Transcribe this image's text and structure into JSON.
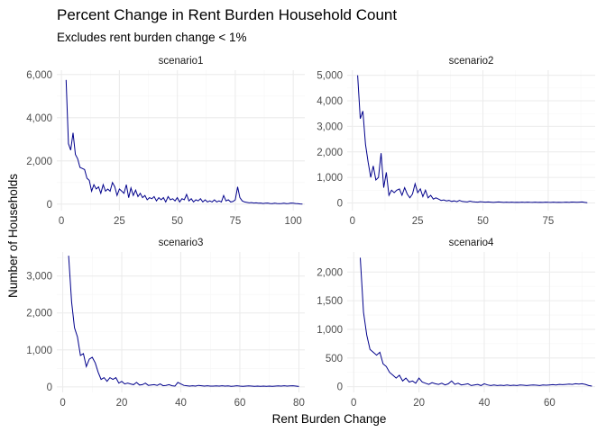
{
  "chart_data": {
    "type": "line",
    "title": "Percent Change in Rent Burden Household Count",
    "subtitle": "Excludes rent burden change < 1%",
    "xlabel": "Rent Burden Change",
    "ylabel": "Number of Households",
    "grid": true,
    "line_color": "#00008b",
    "facets": [
      {
        "strip": "scenario1",
        "xlim": [
          -2,
          105
        ],
        "ylim": [
          -300,
          6200
        ],
        "xticks": [
          0,
          25,
          50,
          75,
          100
        ],
        "xtick_labels": [
          "0",
          "25",
          "50",
          "75",
          "100"
        ],
        "yticks": [
          0,
          2000,
          4000,
          6000
        ],
        "ytick_labels": [
          "0",
          "2,000",
          "4,000",
          "6,000"
        ],
        "x": [
          2,
          3,
          4,
          5,
          6,
          7,
          8,
          9,
          10,
          11,
          12,
          13,
          14,
          15,
          16,
          17,
          18,
          19,
          20,
          21,
          22,
          23,
          24,
          25,
          26,
          27,
          28,
          29,
          30,
          31,
          32,
          33,
          34,
          35,
          36,
          37,
          38,
          39,
          40,
          41,
          42,
          43,
          44,
          45,
          46,
          47,
          48,
          49,
          50,
          51,
          52,
          53,
          54,
          55,
          56,
          57,
          58,
          59,
          60,
          61,
          62,
          63,
          64,
          65,
          66,
          67,
          68,
          69,
          70,
          71,
          72,
          73,
          74,
          75,
          76,
          77,
          78,
          79,
          80,
          81,
          82,
          83,
          84,
          85,
          86,
          87,
          88,
          89,
          90,
          91,
          92,
          93,
          94,
          95,
          96,
          97,
          98,
          99,
          100,
          101,
          102,
          103,
          104
        ],
        "y": [
          5750,
          2800,
          2500,
          3300,
          2300,
          2100,
          1700,
          1650,
          1600,
          1200,
          1100,
          600,
          900,
          700,
          800,
          500,
          900,
          600,
          700,
          600,
          1000,
          800,
          400,
          700,
          600,
          500,
          900,
          300,
          750,
          400,
          650,
          350,
          500,
          300,
          400,
          200,
          300,
          250,
          350,
          150,
          300,
          200,
          300,
          100,
          350,
          200,
          250,
          150,
          300,
          100,
          250,
          200,
          450,
          150,
          250,
          100,
          200,
          150,
          250,
          100,
          200,
          100,
          150,
          100,
          200,
          100,
          150,
          100,
          400,
          150,
          200,
          100,
          120,
          200,
          800,
          300,
          150,
          100,
          80,
          60,
          70,
          50,
          60,
          40,
          50,
          30,
          40,
          50,
          30,
          20,
          40,
          30,
          20,
          30,
          40,
          20,
          30,
          50,
          40,
          30,
          20,
          10,
          5
        ]
      },
      {
        "strip": "scenario2",
        "xlim": [
          -2,
          93
        ],
        "ylim": [
          -300,
          5200
        ],
        "xticks": [
          0,
          25,
          50,
          75
        ],
        "xtick_labels": [
          "0",
          "25",
          "50",
          "75"
        ],
        "yticks": [
          0,
          1000,
          2000,
          3000,
          4000,
          5000
        ],
        "ytick_labels": [
          "0",
          "1,000",
          "2,000",
          "3,000",
          "4,000",
          "5,000"
        ],
        "x": [
          2,
          3,
          4,
          5,
          6,
          7,
          8,
          9,
          10,
          11,
          12,
          13,
          14,
          15,
          16,
          17,
          18,
          19,
          20,
          21,
          22,
          23,
          24,
          25,
          26,
          27,
          28,
          29,
          30,
          31,
          32,
          33,
          34,
          35,
          36,
          37,
          38,
          39,
          40,
          41,
          42,
          43,
          44,
          45,
          46,
          47,
          48,
          49,
          50,
          51,
          52,
          53,
          54,
          55,
          56,
          57,
          58,
          59,
          60,
          61,
          62,
          63,
          64,
          65,
          66,
          67,
          68,
          69,
          70,
          71,
          72,
          73,
          74,
          75,
          76,
          77,
          78,
          79,
          80,
          81,
          82,
          83,
          84,
          85,
          86,
          87,
          88,
          89,
          90
        ],
        "y": [
          5000,
          3300,
          3600,
          2300,
          1600,
          1000,
          1450,
          900,
          1000,
          1950,
          600,
          1200,
          300,
          500,
          400,
          500,
          550,
          300,
          600,
          350,
          200,
          350,
          750,
          400,
          550,
          250,
          500,
          200,
          300,
          150,
          200,
          150,
          100,
          120,
          80,
          100,
          60,
          80,
          50,
          100,
          60,
          50,
          40,
          70,
          50,
          40,
          30,
          50,
          40,
          30,
          40,
          30,
          20,
          30,
          40,
          30,
          20,
          30,
          20,
          30,
          20,
          25,
          20,
          30,
          20,
          30,
          25,
          20,
          30,
          20,
          25,
          20,
          30,
          25,
          20,
          30,
          20,
          25,
          20,
          25,
          30,
          20,
          35,
          30,
          25,
          30,
          40,
          20,
          10
        ]
      },
      {
        "strip": "scenario3",
        "xlim": [
          -2,
          82
        ],
        "ylim": [
          -150,
          3650
        ],
        "xticks": [
          0,
          20,
          40,
          60,
          80
        ],
        "xtick_labels": [
          "0",
          "20",
          "40",
          "60",
          "80"
        ],
        "yticks": [
          0,
          1000,
          2000,
          3000
        ],
        "ytick_labels": [
          "0",
          "1,000",
          "2,000",
          "3,000"
        ],
        "x": [
          2,
          3,
          4,
          5,
          6,
          7,
          8,
          9,
          10,
          11,
          12,
          13,
          14,
          15,
          16,
          17,
          18,
          19,
          20,
          21,
          22,
          23,
          24,
          25,
          26,
          27,
          28,
          29,
          30,
          31,
          32,
          33,
          34,
          35,
          36,
          37,
          38,
          39,
          40,
          41,
          42,
          43,
          44,
          45,
          46,
          47,
          48,
          49,
          50,
          51,
          52,
          53,
          54,
          55,
          56,
          57,
          58,
          59,
          60,
          61,
          62,
          63,
          64,
          65,
          66,
          67,
          68,
          69,
          70,
          71,
          72,
          73,
          74,
          75,
          76,
          77,
          78,
          79,
          80
        ],
        "y": [
          3550,
          2300,
          1600,
          1350,
          850,
          900,
          550,
          750,
          800,
          650,
          400,
          200,
          250,
          150,
          250,
          200,
          250,
          100,
          150,
          80,
          100,
          80,
          60,
          120,
          50,
          60,
          100,
          40,
          50,
          60,
          40,
          80,
          30,
          40,
          60,
          30,
          20,
          120,
          80,
          40,
          30,
          20,
          30,
          20,
          40,
          30,
          20,
          30,
          20,
          20,
          25,
          20,
          30,
          20,
          25,
          15,
          20,
          30,
          20,
          15,
          20,
          25,
          20,
          15,
          20,
          15,
          20,
          15,
          20,
          15,
          20,
          25,
          20,
          30,
          20,
          25,
          30,
          20,
          10
        ]
      },
      {
        "strip": "scenario4",
        "xlim": [
          -2,
          74
        ],
        "ylim": [
          -100,
          2350
        ],
        "xticks": [
          0,
          20,
          40,
          60
        ],
        "xtick_labels": [
          "0",
          "20",
          "40",
          "60"
        ],
        "yticks": [
          0,
          500,
          1000,
          1500,
          2000
        ],
        "ytick_labels": [
          "0",
          "500",
          "1,000",
          "1,500",
          "2,000"
        ],
        "x": [
          2,
          3,
          4,
          5,
          6,
          7,
          8,
          9,
          10,
          11,
          12,
          13,
          14,
          15,
          16,
          17,
          18,
          19,
          20,
          21,
          22,
          23,
          24,
          25,
          26,
          27,
          28,
          29,
          30,
          31,
          32,
          33,
          34,
          35,
          36,
          37,
          38,
          39,
          40,
          41,
          42,
          43,
          44,
          45,
          46,
          47,
          48,
          49,
          50,
          51,
          52,
          53,
          54,
          55,
          56,
          57,
          58,
          59,
          60,
          61,
          62,
          63,
          64,
          65,
          66,
          67,
          68,
          69,
          70,
          71,
          72,
          73
        ],
        "y": [
          2250,
          1300,
          900,
          650,
          600,
          550,
          600,
          400,
          350,
          250,
          200,
          150,
          200,
          100,
          150,
          80,
          100,
          60,
          150,
          80,
          60,
          40,
          70,
          50,
          40,
          60,
          30,
          50,
          100,
          40,
          60,
          30,
          40,
          50,
          20,
          30,
          40,
          20,
          50,
          30,
          20,
          30,
          20,
          25,
          20,
          30,
          20,
          25,
          20,
          30,
          25,
          20,
          25,
          30,
          25,
          20,
          30,
          25,
          30,
          35,
          30,
          40,
          35,
          40,
          45,
          40,
          50,
          45,
          50,
          40,
          20,
          10
        ]
      }
    ]
  }
}
